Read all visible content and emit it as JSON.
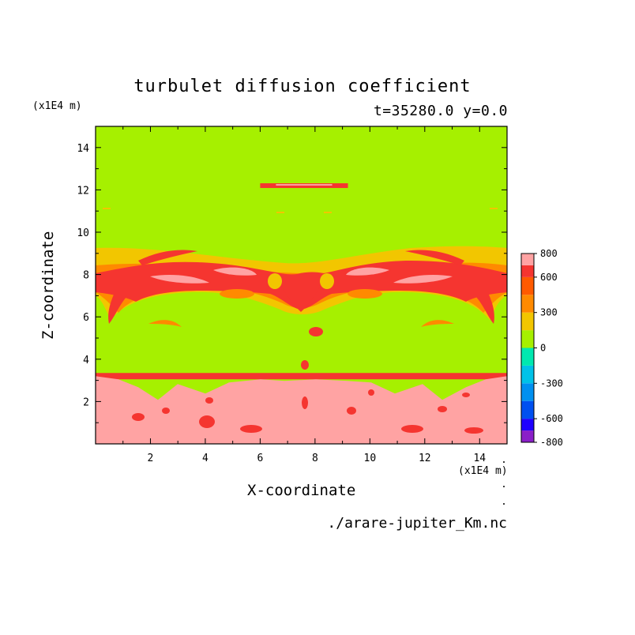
{
  "chart_data": {
    "type": "heatmap",
    "title": "turbulet diffusion coefficient",
    "subtitle": "t=35280.0 y=0.0",
    "xlabel": "X-coordinate",
    "ylabel": "Z-coordinate",
    "x_unit": "(x1E4 m)",
    "y_unit": "(x1E4 m)",
    "xlim": [
      0,
      15
    ],
    "ylim": [
      0,
      15
    ],
    "xticks": [
      2,
      4,
      6,
      8,
      10,
      12,
      14
    ],
    "yticks": [
      2,
      4,
      6,
      8,
      10,
      12,
      14
    ],
    "colorbar": {
      "labels": [
        800,
        600,
        300,
        0,
        -300,
        -600,
        -800
      ],
      "levels": [
        {
          "from": -800,
          "to": -700,
          "color": "#8a1fc8"
        },
        {
          "from": -700,
          "to": -600,
          "color": "#1e00ff"
        },
        {
          "from": -600,
          "to": -450,
          "color": "#0050f0"
        },
        {
          "from": -450,
          "to": -300,
          "color": "#0090f0"
        },
        {
          "from": -300,
          "to": -150,
          "color": "#00c2e8"
        },
        {
          "from": -150,
          "to": 0,
          "color": "#00e8b0"
        },
        {
          "from": 0,
          "to": 150,
          "color": "#a6f000"
        },
        {
          "from": 150,
          "to": 300,
          "color": "#f2c600"
        },
        {
          "from": 300,
          "to": 450,
          "color": "#ff8a00"
        },
        {
          "from": 450,
          "to": 600,
          "color": "#ff5a00"
        },
        {
          "from": 600,
          "to": 700,
          "color": "#f53530"
        },
        {
          "from": 700,
          "to": 800,
          "color": "#ffa3a3"
        }
      ]
    },
    "field_regions": [
      {
        "name": "background",
        "value": 50
      },
      {
        "name": "lower-layer",
        "z_range": [
          0,
          3.2
        ],
        "value": 800
      },
      {
        "name": "middle-band",
        "z_range": [
          6.0,
          9.2
        ],
        "value": 650
      },
      {
        "name": "upper-streak",
        "x_range": [
          6.0,
          9.2
        ],
        "z": 12.2,
        "value": 650
      }
    ]
  },
  "footer": {
    "filename": "./arare-jupiter_Km.nc"
  }
}
